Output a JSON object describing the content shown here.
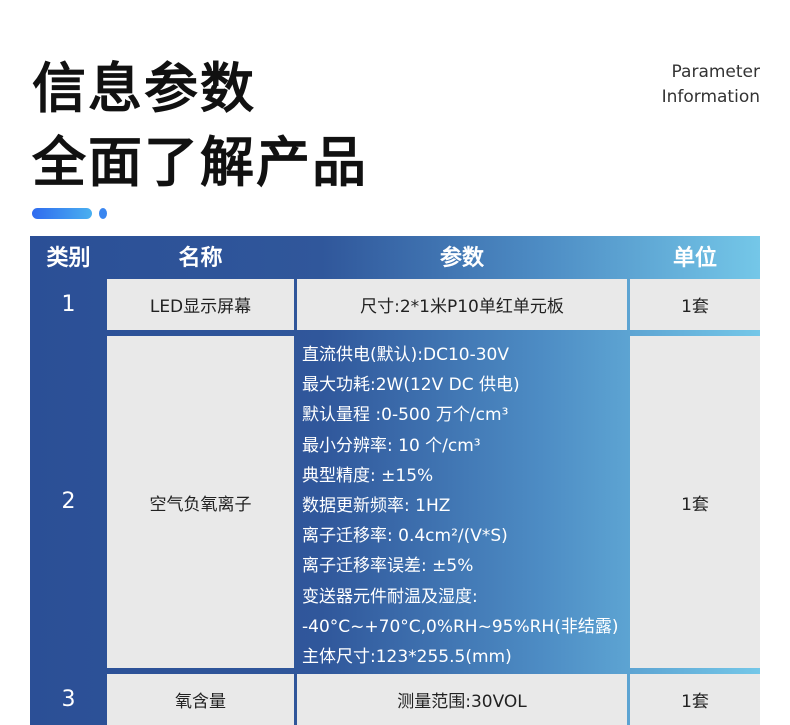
{
  "header": {
    "title_line1": "信息参数",
    "title_line2": "全面了解产品",
    "subtitle_line1": "Parameter",
    "subtitle_line2": "Information"
  },
  "table": {
    "columns": [
      "类别",
      "名称",
      "参数",
      "单位"
    ],
    "rows": [
      {
        "category": "1",
        "name": "LED显示屏幕",
        "params": [
          "尺寸:2*1米P10单红单元板"
        ],
        "unit": "1套"
      },
      {
        "category": "2",
        "name": "空气负氧离子",
        "params": [
          "直流供电(默认):DC10-30V",
          "最大功耗:2W(12V DC 供电)",
          "默认量程 :0-500 万个/cm³",
          "最小分辨率: 10 个/cm³",
          "典型精度: ±15%",
          "数据更新频率: 1HZ",
          "离子迁移率: 0.4cm²/(V*S)",
          "离子迁移率误差: ±5%",
          "变送器元件耐温及湿度:",
          "-40°C~+70°C,0%RH~95%RH(非结露)",
          "主体尺寸:123*255.5(mm)"
        ],
        "unit": "1套"
      },
      {
        "category": "3",
        "name": "氧含量",
        "params": [
          "测量范围:30VOL"
        ],
        "unit": "1套"
      }
    ]
  },
  "colors": {
    "header_dark": "#2b4f96",
    "header_light": "#74c7e8",
    "cell_bg": "#e9e9e9"
  }
}
